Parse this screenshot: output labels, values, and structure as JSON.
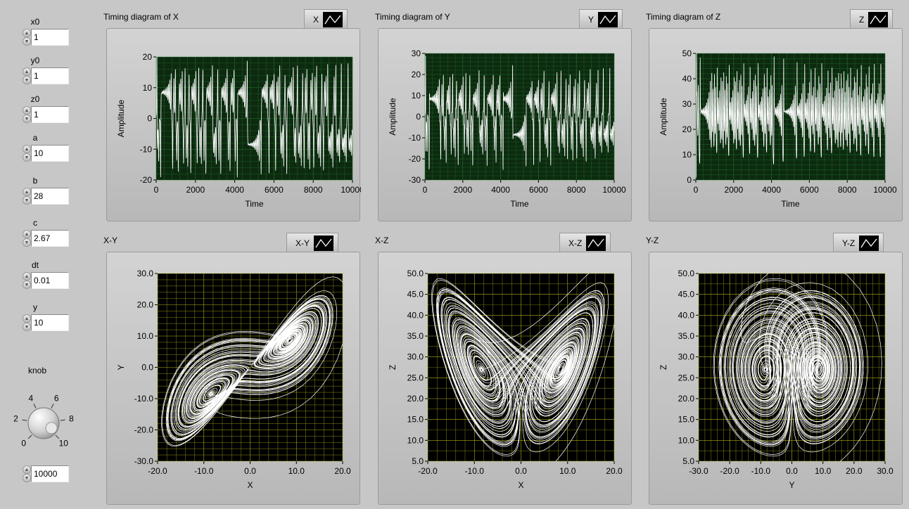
{
  "controls": [
    {
      "label": "x0",
      "value": "1"
    },
    {
      "label": "y0",
      "value": "1"
    },
    {
      "label": "z0",
      "value": "1"
    },
    {
      "label": "a",
      "value": "10"
    },
    {
      "label": "b",
      "value": "28"
    },
    {
      "label": "c",
      "value": "2.67"
    },
    {
      "label": "dt",
      "value": "0.01"
    },
    {
      "label": "y",
      "value": "10"
    }
  ],
  "knob": {
    "label": "knob",
    "ticks": [
      "0",
      "2",
      "4",
      "6",
      "8",
      "10"
    ],
    "value_shown": 9.5
  },
  "steps": {
    "value": "10000"
  },
  "colors": {
    "panel_bg": "#c7c7c7",
    "timing_plot_bg": "#0d2a10",
    "timing_grid": "#1f7a28",
    "phase_plot_bg": "#000000",
    "phase_grid": "#b8b81a",
    "trace": "#ffffff"
  },
  "icons": {
    "spinner": "up-down-arrows-icon",
    "legend": "line-plot-icon"
  },
  "charts": [
    {
      "id": "timing-x",
      "title": "Timing diagram of X",
      "legend": "X",
      "kind": "timing",
      "xlabel": "Time",
      "ylabel": "Amplitude",
      "xlim": [
        0,
        10000
      ],
      "ylim": [
        -20,
        20
      ],
      "xticks": [
        "0",
        "2000",
        "4000",
        "6000",
        "8000",
        "10000"
      ],
      "yticks": [
        "-20",
        "-10",
        "0",
        "10",
        "20"
      ],
      "grid": true
    },
    {
      "id": "timing-y",
      "title": "Timing diagram of Y",
      "legend": "Y",
      "kind": "timing",
      "xlabel": "Time",
      "ylabel": "Amplitude",
      "xlim": [
        0,
        10000
      ],
      "ylim": [
        -30,
        30
      ],
      "xticks": [
        "0",
        "2000",
        "4000",
        "6000",
        "8000",
        "10000"
      ],
      "yticks": [
        "-30",
        "-20",
        "-10",
        "0",
        "10",
        "20",
        "30"
      ],
      "grid": true
    },
    {
      "id": "timing-z",
      "title": "Timing diagram of Z",
      "legend": "Z",
      "kind": "timing",
      "xlabel": "Time",
      "ylabel": "Amplitude",
      "xlim": [
        0,
        10000
      ],
      "ylim": [
        0,
        50
      ],
      "xticks": [
        "0",
        "2000",
        "4000",
        "6000",
        "8000",
        "10000"
      ],
      "yticks": [
        "0",
        "10",
        "20",
        "30",
        "40",
        "50"
      ],
      "grid": true
    },
    {
      "id": "phase-xy",
      "title": "X-Y",
      "legend": "X-Y",
      "kind": "phase",
      "xlabel": "X",
      "ylabel": "Y",
      "xlim": [
        -20,
        20
      ],
      "ylim": [
        -30,
        30
      ],
      "xticks": [
        "-20.0",
        "-10.0",
        "0.0",
        "10.0",
        "20.0"
      ],
      "yticks": [
        "-30.0",
        "-20.0",
        "-10.0",
        "0.0",
        "10.0",
        "20.0",
        "30.0"
      ],
      "grid": true
    },
    {
      "id": "phase-xz",
      "title": "X-Z",
      "legend": "X-Z",
      "kind": "phase",
      "xlabel": "X",
      "ylabel": "Z",
      "xlim": [
        -20,
        20
      ],
      "ylim": [
        5,
        50
      ],
      "xticks": [
        "-20.0",
        "-10.0",
        "0.0",
        "10.0",
        "20.0"
      ],
      "yticks": [
        "5.0",
        "10.0",
        "15.0",
        "20.0",
        "25.0",
        "30.0",
        "35.0",
        "40.0",
        "45.0",
        "50.0"
      ],
      "grid": true
    },
    {
      "id": "phase-yz",
      "title": "Y-Z",
      "legend": "Y-Z",
      "kind": "phase",
      "xlabel": "Y",
      "ylabel": "Z",
      "xlim": [
        -30,
        30
      ],
      "ylim": [
        5,
        50
      ],
      "xticks": [
        "-30.0",
        "-20.0",
        "-10.0",
        "0.0",
        "10.0",
        "20.0",
        "30.0"
      ],
      "yticks": [
        "5.0",
        "10.0",
        "15.0",
        "20.0",
        "25.0",
        "30.0",
        "35.0",
        "40.0",
        "45.0",
        "50.0"
      ],
      "grid": true
    }
  ],
  "chart_data": [
    {
      "type": "line",
      "title": "Timing diagram of X",
      "xlabel": "Time",
      "ylabel": "Amplitude",
      "xlim": [
        0,
        10000
      ],
      "ylim": [
        -20,
        20
      ],
      "series": [
        {
          "name": "X",
          "generator": "lorenz",
          "params": {
            "x0": 1,
            "y0": 1,
            "z0": 1,
            "a": 10,
            "b": 28,
            "c": 2.67,
            "dt": 0.01,
            "steps": 10000
          },
          "component": "x"
        }
      ]
    },
    {
      "type": "line",
      "title": "Timing diagram of Y",
      "xlabel": "Time",
      "ylabel": "Amplitude",
      "xlim": [
        0,
        10000
      ],
      "ylim": [
        -30,
        30
      ],
      "series": [
        {
          "name": "Y",
          "component": "y"
        }
      ]
    },
    {
      "type": "line",
      "title": "Timing diagram of Z",
      "xlabel": "Time",
      "ylabel": "Amplitude",
      "xlim": [
        0,
        10000
      ],
      "ylim": [
        0,
        50
      ],
      "series": [
        {
          "name": "Z",
          "component": "z"
        }
      ]
    },
    {
      "type": "line",
      "title": "X-Y",
      "xlabel": "X",
      "ylabel": "Y",
      "xlim": [
        -20,
        20
      ],
      "ylim": [
        -30,
        30
      ],
      "series": [
        {
          "name": "X-Y",
          "x_component": "x",
          "y_component": "y"
        }
      ]
    },
    {
      "type": "line",
      "title": "X-Z",
      "xlabel": "X",
      "ylabel": "Z",
      "xlim": [
        -20,
        20
      ],
      "ylim": [
        5,
        50
      ],
      "series": [
        {
          "name": "X-Z",
          "x_component": "x",
          "y_component": "z"
        }
      ]
    },
    {
      "type": "line",
      "title": "Y-Z",
      "xlabel": "Y",
      "ylabel": "Z",
      "xlim": [
        -30,
        30
      ],
      "ylim": [
        5,
        50
      ],
      "series": [
        {
          "name": "Y-Z",
          "x_component": "y",
          "y_component": "z"
        }
      ]
    }
  ]
}
